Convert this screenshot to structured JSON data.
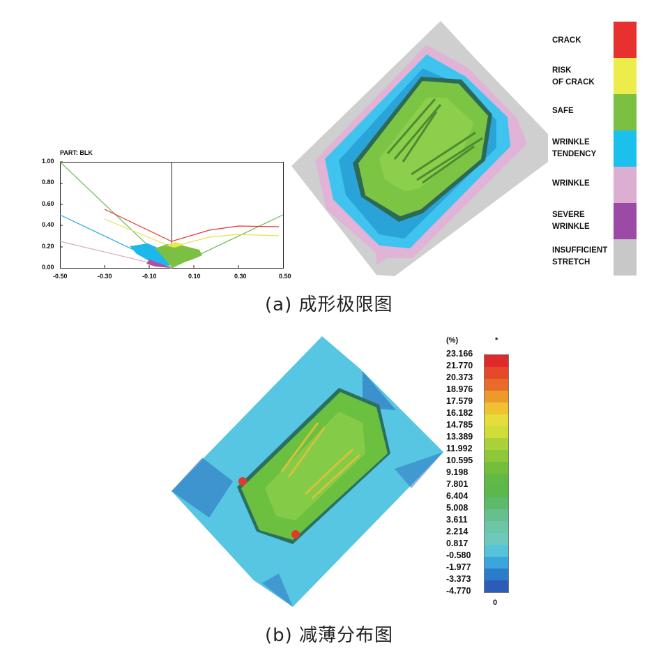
{
  "figure_a": {
    "caption": "(a) 成形极限图",
    "fld": {
      "part_label": "PART:  BLK",
      "y_ticks": [
        "1.00",
        "0.80",
        "0.60",
        "0.40",
        "0.20",
        "0.00"
      ],
      "x_ticks": [
        "-0.50",
        "-0.30",
        "-0.10",
        "0.10",
        "0.30",
        "0.50"
      ]
    },
    "legend": [
      {
        "label": "CRACK",
        "color": "#e8302e"
      },
      {
        "label": "RISK\nOF CRACK",
        "color": "#ecec4a"
      },
      {
        "label": "SAFE",
        "color": "#7cc043"
      },
      {
        "label": "WRINKLE\nTENDENCY",
        "color": "#1cc0ec"
      },
      {
        "label": "WRINKLE",
        "color": "#dcaed2"
      },
      {
        "label": "SEVERE\nWRINKLE",
        "color": "#9b4ba6"
      },
      {
        "label": "INSUFFICIENT\nSTRETCH",
        "color": "#c8c8c8"
      }
    ]
  },
  "figure_b": {
    "caption": "(b) 减薄分布图",
    "unit": "(%)",
    "top_mark": "*",
    "bottom_mark": "0",
    "values": [
      "23.166",
      "21.770",
      "20.373",
      "18.976",
      "17.579",
      "16.182",
      "14.785",
      "13.389",
      "11.992",
      "10.595",
      "9.198",
      "7.801",
      "6.404",
      "5.008",
      "3.611",
      "2.214",
      "0.817",
      "-0.580",
      "-1.977",
      "-3.373",
      "-4.770"
    ],
    "colors": [
      "#e02a2a",
      "#e6482a",
      "#ea6a2a",
      "#ee9a2a",
      "#eec232",
      "#e6dc3a",
      "#cfdc3a",
      "#aad03a",
      "#8ec83a",
      "#74be3c",
      "#62b844",
      "#5ab84c",
      "#5cba6a",
      "#66c08c",
      "#6cc6a6",
      "#6ec8bc",
      "#56c4d8",
      "#3aa6dc",
      "#2c7ccc",
      "#2a5cb8",
      "#2a44a6"
    ]
  }
}
